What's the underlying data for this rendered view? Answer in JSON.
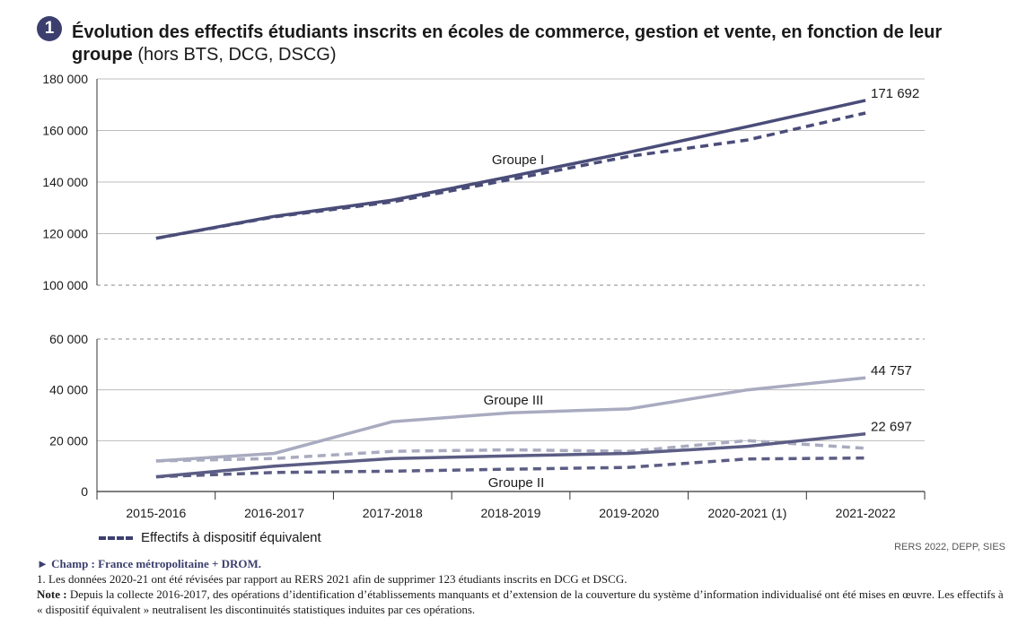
{
  "figure": {
    "number": "1",
    "title_bold": "Évolution des effectifs étudiants inscrits en écoles de commerce, gestion et vente, en fonction de leur groupe",
    "title_light": "(hors BTS, DCG, DSCG)"
  },
  "chart_data": {
    "type": "line",
    "title": "Évolution des effectifs étudiants inscrits en écoles de commerce, gestion et vente, en fonction de leur groupe (hors BTS, DCG, DSCG)",
    "categories": [
      "2015-2016",
      "2016-2017",
      "2017-2018",
      "2018-2019",
      "2019-2020",
      "2020-2021 (1)",
      "2021-2022"
    ],
    "y_axis_break": true,
    "panels": [
      {
        "name": "upper",
        "ylim": [
          100000,
          180000
        ],
        "ticks": [
          100000,
          120000,
          140000,
          160000,
          180000
        ],
        "tick_labels": [
          "100 000",
          "120 000",
          "140 000",
          "160 000",
          "180 000"
        ]
      },
      {
        "name": "lower",
        "ylim": [
          0,
          60000
        ],
        "ticks": [
          0,
          20000,
          40000,
          60000
        ],
        "tick_labels": [
          "0",
          "20 000",
          "40 000",
          "60 000"
        ]
      }
    ],
    "series": [
      {
        "name": "Groupe I",
        "panel": "upper",
        "style": "solid",
        "color": "#4a4c78",
        "values": [
          118200,
          126700,
          133000,
          142200,
          151600,
          161500,
          171692
        ]
      },
      {
        "name": "Groupe I – Effectifs à dispositif équivalent",
        "panel": "upper",
        "style": "dashed",
        "color": "#4a4c78",
        "values": [
          118200,
          126500,
          132300,
          141000,
          150000,
          156300,
          166800
        ]
      },
      {
        "name": "Groupe III",
        "panel": "lower",
        "style": "solid",
        "color": "#a9abc0",
        "values": [
          12000,
          15000,
          27500,
          31000,
          32500,
          40000,
          44757
        ]
      },
      {
        "name": "Groupe III – Effectifs à dispositif équivalent",
        "panel": "lower",
        "style": "dashed",
        "color": "#a9abc0",
        "values": [
          12000,
          13000,
          15800,
          16400,
          15800,
          20000,
          17000
        ]
      },
      {
        "name": "Groupe II",
        "panel": "lower",
        "style": "solid",
        "color": "#5b5d84",
        "values": [
          5800,
          10000,
          13000,
          14000,
          15000,
          17800,
          22697
        ]
      },
      {
        "name": "Groupe II – Effectifs à dispositif équivalent",
        "panel": "lower",
        "style": "dashed",
        "color": "#5b5d84",
        "values": [
          5800,
          7500,
          8000,
          8800,
          9500,
          12800,
          13200
        ]
      }
    ],
    "annotations": {
      "group_labels": [
        "Groupe I",
        "Groupe III",
        "Groupe II"
      ],
      "end_labels": [
        "171 692",
        "44 757",
        "22 697"
      ]
    },
    "legend": {
      "label": "Effectifs à dispositif équivalent",
      "placement": "bottom-left"
    }
  },
  "footer": {
    "source": "RERS 2022, DEPP, SIES",
    "champ": "► Champ : France métropolitaine + DROM.",
    "note1_num": "1.",
    "note1_text": "Les données 2020-21 ont été révisées par rapport au RERS 2021 afin de supprimer 123 étudiants inscrits en DCG et DSCG.",
    "note_label": "Note :",
    "note_text": "Depuis la collecte 2016-2017, des opérations d’identification d’établissements manquants et d’extension de la couverture du système d’information individualisé ont été mises en œuvre. Les effectifs à « dispositif équivalent » neutralisent les discontinuités statistiques induites par ces opérations."
  }
}
